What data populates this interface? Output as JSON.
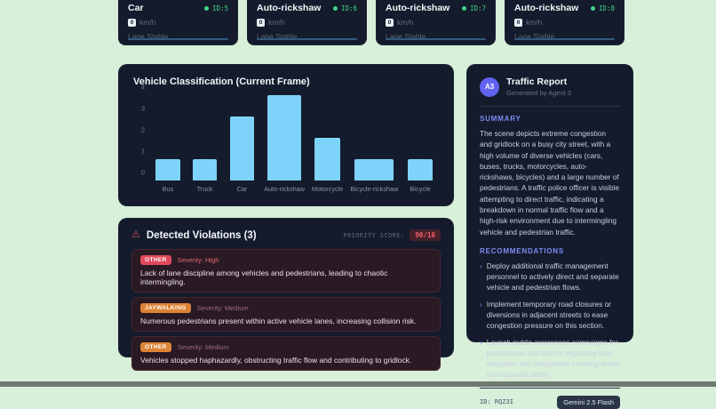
{
  "colors": {
    "page_bg": "#d8efda",
    "panel_bg": "#141b2c",
    "accent_green": "#3fd68a",
    "bar_blue": "#7ed3fb",
    "indigo": "#7f8bf5",
    "warn_red": "#e05252",
    "card_underline": "#335a7d"
  },
  "vehicle_cards": [
    {
      "name": "Car",
      "id_label": "ID:5",
      "speed_value": "0",
      "speed_unit": "km/h",
      "status": "Lane Stable"
    },
    {
      "name": "Auto-rickshaw",
      "id_label": "ID:6",
      "speed_value": "0",
      "speed_unit": "km/h",
      "status": "Lane Stable"
    },
    {
      "name": "Auto-rickshaw",
      "id_label": "ID:7",
      "speed_value": "0",
      "speed_unit": "km/h",
      "status": "Lane Stable"
    },
    {
      "name": "Auto-rickshaw",
      "id_label": "ID:8",
      "speed_value": "0",
      "speed_unit": "km/h",
      "status": "Lane Stable"
    }
  ],
  "chart_data": {
    "type": "bar",
    "title": "Vehicle Classification (Current Frame)",
    "categories": [
      "Bus",
      "Truck",
      "Car",
      "Auto-rickshaw",
      "Motorcycle",
      "Bicycle-rickshaw",
      "Bicycle"
    ],
    "values": [
      1,
      1,
      3,
      4,
      2,
      1,
      1
    ],
    "xlabel": "",
    "ylabel": "",
    "ylim": [
      0,
      4
    ],
    "yticks": [
      0,
      1,
      2,
      3,
      4
    ],
    "bar_color": "#7ed3fb",
    "grid": false,
    "legend": false
  },
  "violations": {
    "warn_icon": "⚠",
    "title": "Detected Violations (3)",
    "priority_label": "PRIORITY SCORE:",
    "priority_value": "90/10",
    "items": [
      {
        "badge": "OTHER",
        "badge_color": "#e0485a",
        "severity": "Severity: High",
        "severity_color": "#e06a74",
        "text": "Lack of lane discipline among vehicles and pedestrians, leading to chaotic intermingling."
      },
      {
        "badge": "JAYWALKING",
        "badge_color": "#dc8336",
        "severity": "Severity: Medium",
        "severity_color": "#9e6d86",
        "text": "Numerous pedestrians present within active vehicle lanes, increasing collision risk."
      },
      {
        "badge": "OTHER",
        "badge_color": "#dc8336",
        "severity": "Severity: Medium",
        "severity_color": "#9e6d86",
        "text": "Vehicles stopped haphazardly, obstructing traffic flow and contributing to gridlock."
      }
    ]
  },
  "report": {
    "avatar": "A3",
    "title": "Traffic Report",
    "subtitle": "Generated by Agent 3",
    "summary_heading": "SUMMARY",
    "summary": "The scene depicts extreme congestion and gridlock on a busy city street, with a high volume of diverse vehicles (cars, buses, trucks, motorcycles, auto-rickshaws, bicycles) and a large number of pedestrians. A traffic police officer is visible attempting to direct traffic, indicating a breakdown in normal traffic flow and a high-risk environment due to intermingling vehicle and pedestrian traffic.",
    "recommendations_heading": "RECOMMENDATIONS",
    "bullet": "›",
    "recommendations": [
      "Deploy additional traffic management personnel to actively direct and separate vehicle and pedestrian flows.",
      "Implement temporary road closures or diversions in adjacent streets to ease congestion pressure on this section.",
      "Launch public awareness campaigns for pedestrians and drivers regarding lane discipline and designated crossing areas for improved safety."
    ],
    "footer_id": "ID: RQZ3I",
    "model_badge": "Gemini 2.5 Flash"
  }
}
